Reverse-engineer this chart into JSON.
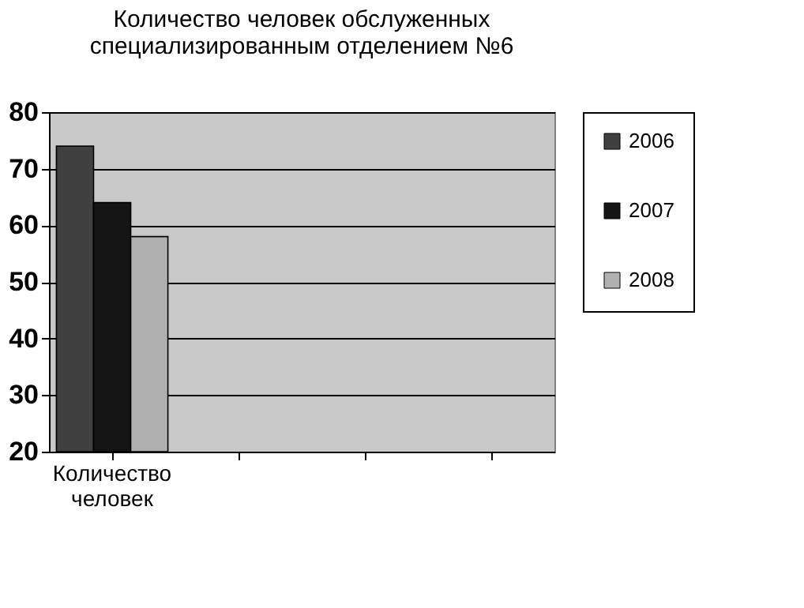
{
  "chart_data": {
    "type": "bar",
    "title": "Количество человек обслуженных специализированным отделением №6",
    "categories": [
      "Количество человек",
      null,
      null,
      null
    ],
    "series": [
      {
        "name": "2006",
        "color": "#404040",
        "values": [
          74,
          null,
          null,
          null
        ]
      },
      {
        "name": "2007",
        "color": "#151515",
        "values": [
          64,
          null,
          null,
          null
        ]
      },
      {
        "name": "2008",
        "color": "#b0b0b0",
        "values": [
          58,
          null,
          null,
          null
        ]
      }
    ],
    "ylim": [
      20,
      80
    ],
    "yticks": [
      20,
      30,
      40,
      50,
      60,
      70,
      80
    ],
    "grid": "y",
    "legend": "right"
  }
}
